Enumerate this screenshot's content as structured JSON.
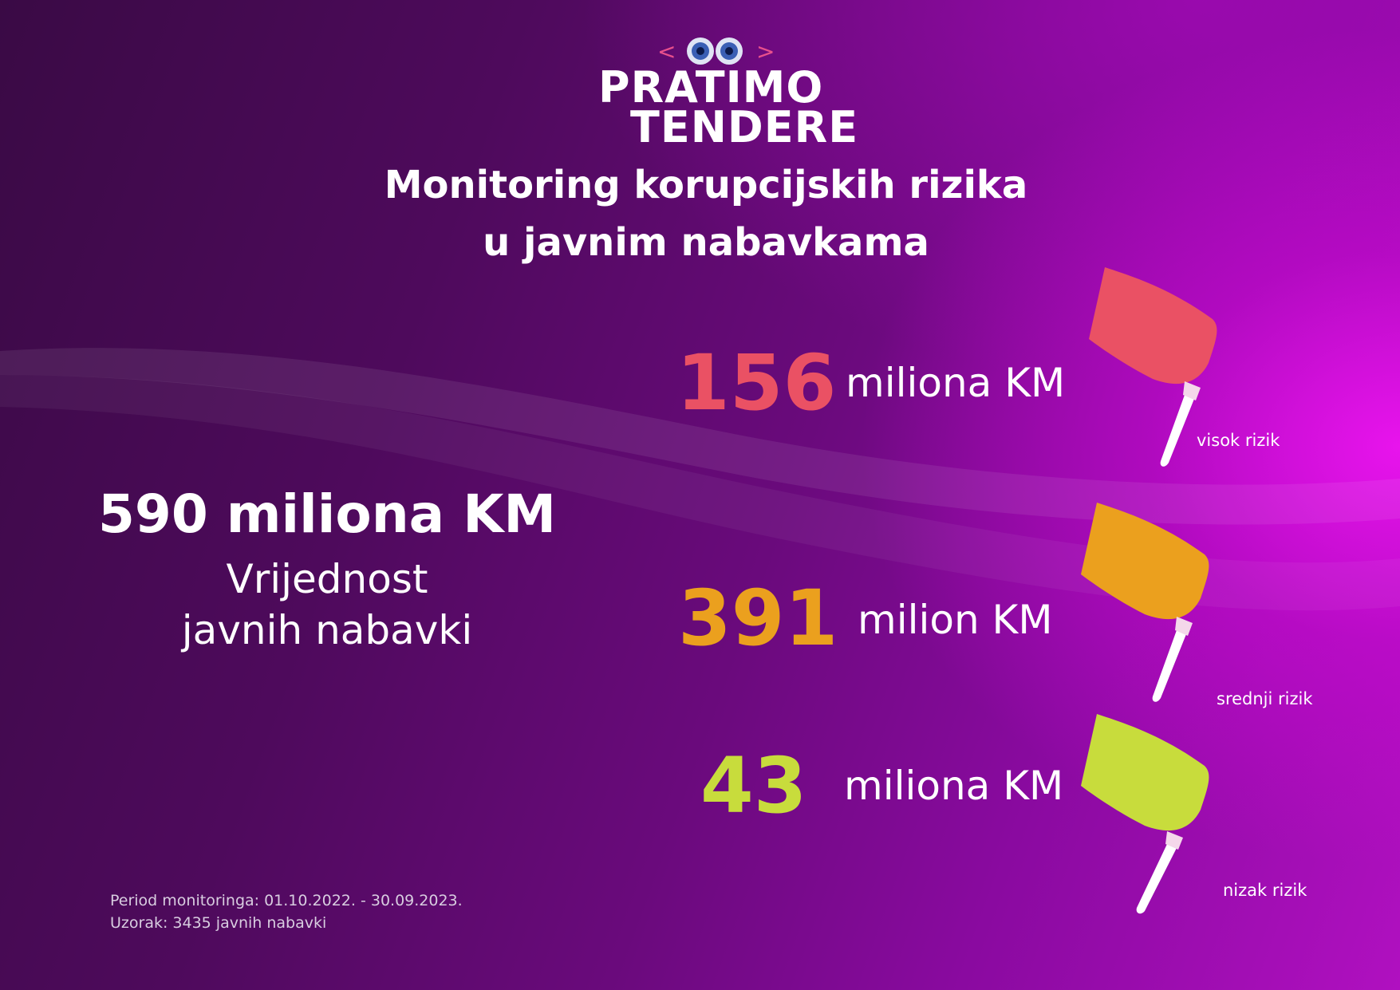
{
  "logo": {
    "line1": "PRATIMO",
    "line2": "TENDERE",
    "left_bracket": "<",
    "right_bracket": ">"
  },
  "title": {
    "line1": "Monitoring korupcijskih rizika",
    "line2": "u javnim nabavkama"
  },
  "total": {
    "value": "590 miliona KM",
    "label_line1": "Vrijednost",
    "label_line2": "javnih nabavki"
  },
  "stats": [
    {
      "number": "156",
      "unit": "miliona KM",
      "risk_label": "visok rizik",
      "color": "#ea5164"
    },
    {
      "number": "391",
      "unit": "milion KM",
      "risk_label": "srednji rizik",
      "color": "#eba01e"
    },
    {
      "number": "43",
      "unit": "miliona KM",
      "risk_label": "nizak rizik",
      "color": "#c8dc3c"
    }
  ],
  "footer": {
    "period": "Period monitoringa: 01.10.2022. - 30.09.2023.",
    "sample": "Uzorak: 3435 javnih nabavki"
  }
}
